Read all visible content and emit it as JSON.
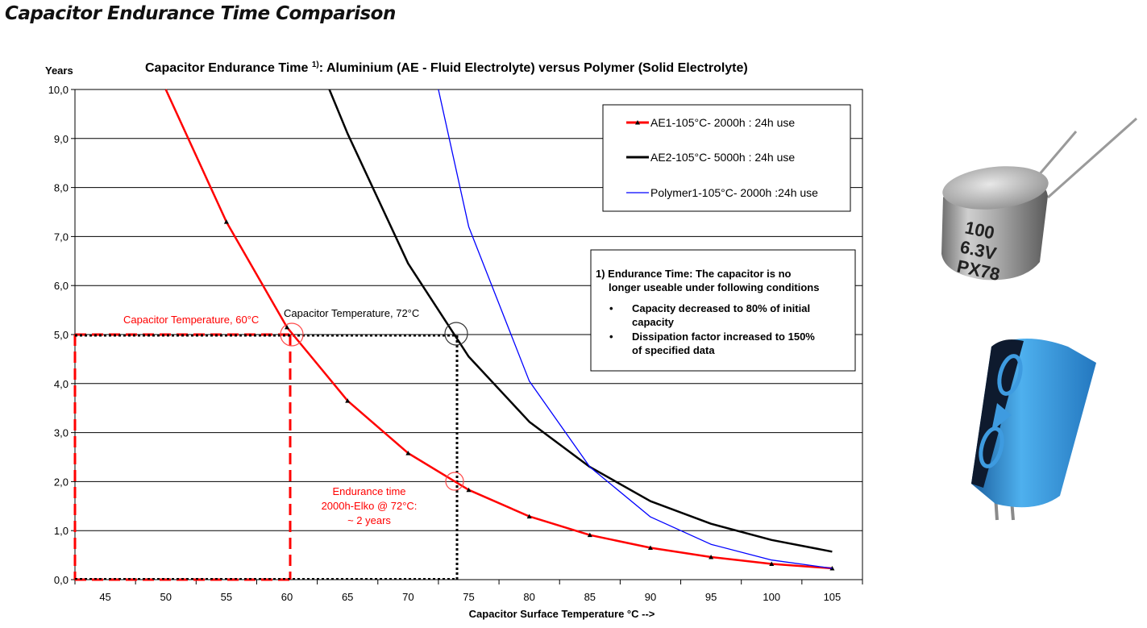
{
  "page": {
    "title": "Capacitor Endurance Time Comparison"
  },
  "chart_data": {
    "type": "line",
    "title_main": "Capacitor Endurance Time ",
    "title_sup": "1)",
    "title_rest": ": Aluminium (AE - Fluid Electrolyte) versus Polymer (Solid Electrolyte)",
    "xlabel": "Capacitor Surface Temperature °C -->",
    "ylabel": "Years",
    "xlim": [
      42.5,
      107.5
    ],
    "ylim": [
      0,
      10
    ],
    "x_ticks": [
      45,
      50,
      55,
      60,
      65,
      70,
      75,
      80,
      85,
      90,
      95,
      100,
      105
    ],
    "y_ticks": [
      "0,0",
      "1,0",
      "2,0",
      "3,0",
      "4,0",
      "5,0",
      "6,0",
      "7,0",
      "8,0",
      "9,0",
      "10,0"
    ],
    "grid": "horizontal",
    "legend_position": "top-right",
    "series": [
      {
        "name": "AE1-105°C- 2000h : 24h use",
        "color": "#ff0000",
        "markers": true,
        "x": [
          50,
          55,
          60,
          65,
          70,
          75,
          80,
          85,
          90,
          95,
          100,
          105
        ],
        "y": [
          10.0,
          7.3,
          5.15,
          3.65,
          2.58,
          1.83,
          1.29,
          0.91,
          0.65,
          0.46,
          0.32,
          0.23
        ]
      },
      {
        "name": "AE2-105°C- 5000h : 24h use",
        "color": "#000000",
        "markers": false,
        "x": [
          63.5,
          65,
          70,
          75,
          80,
          85,
          90,
          95,
          100,
          105
        ],
        "y": [
          10.0,
          9.1,
          6.45,
          4.55,
          3.22,
          2.3,
          1.6,
          1.14,
          0.81,
          0.57
        ]
      },
      {
        "name": "Polymer1-105°C- 2000h :24h use",
        "color": "#0000ff",
        "markers": false,
        "x": [
          72.5,
          75,
          80,
          85,
          90,
          95,
          100,
          105
        ],
        "y": [
          10.0,
          7.2,
          4.05,
          2.3,
          1.28,
          0.72,
          0.4,
          0.23
        ]
      }
    ],
    "note": {
      "line1": "1) Endurance Time: The capacitor is no",
      "line2": "longer useable under following conditions",
      "bullet1_a": "Capacity decreased to 80% of initial",
      "bullet1_b": "capacity",
      "bullet2_a": "Dissipation factor increased to 150%",
      "bullet2_b": "of specified data"
    },
    "annotations": {
      "temp60": "Capacitor Temperature, 60°C",
      "temp72": "Capacitor Temperature, 72°C",
      "endurance_1": "Endurance time",
      "endurance_2": "2000h-Elko  @ 72°C:",
      "endurance_3": "~ 2 years",
      "bullet": "•"
    }
  },
  "photos": {
    "polymer_cap": {
      "line1": "100",
      "line2": "6.3V",
      "line3": "PX78"
    }
  },
  "colors": {
    "ae1": "#ff0000",
    "ae2": "#000000",
    "polymer": "#0000ff",
    "electrolytic_body": "#3b9be0"
  }
}
